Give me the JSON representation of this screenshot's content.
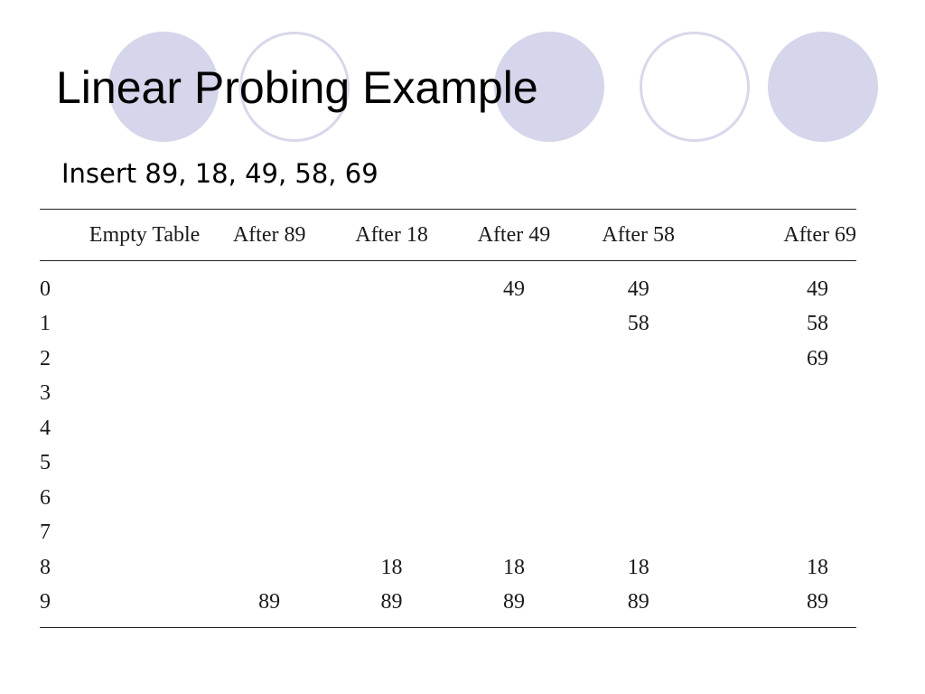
{
  "slide": {
    "title": "Linear Probing Example",
    "subtitle": "Insert 89, 18, 49, 58, 69",
    "decoration_colors": {
      "filled": "#d5d5eb",
      "outline": "#d8d8ec"
    }
  },
  "table": {
    "headers": [
      "",
      "Empty Table",
      "After 89",
      "After 18",
      "After 49",
      "After 58",
      "After 69"
    ],
    "rows": [
      [
        "0",
        "",
        "",
        "",
        "49",
        "49",
        "49"
      ],
      [
        "1",
        "",
        "",
        "",
        "",
        "58",
        "58"
      ],
      [
        "2",
        "",
        "",
        "",
        "",
        "",
        "69"
      ],
      [
        "3",
        "",
        "",
        "",
        "",
        "",
        ""
      ],
      [
        "4",
        "",
        "",
        "",
        "",
        "",
        ""
      ],
      [
        "5",
        "",
        "",
        "",
        "",
        "",
        ""
      ],
      [
        "6",
        "",
        "",
        "",
        "",
        "",
        ""
      ],
      [
        "7",
        "",
        "",
        "",
        "",
        "",
        ""
      ],
      [
        "8",
        "",
        "",
        "18",
        "18",
        "18",
        "18"
      ],
      [
        "9",
        "",
        "89",
        "89",
        "89",
        "89",
        "89"
      ]
    ]
  }
}
